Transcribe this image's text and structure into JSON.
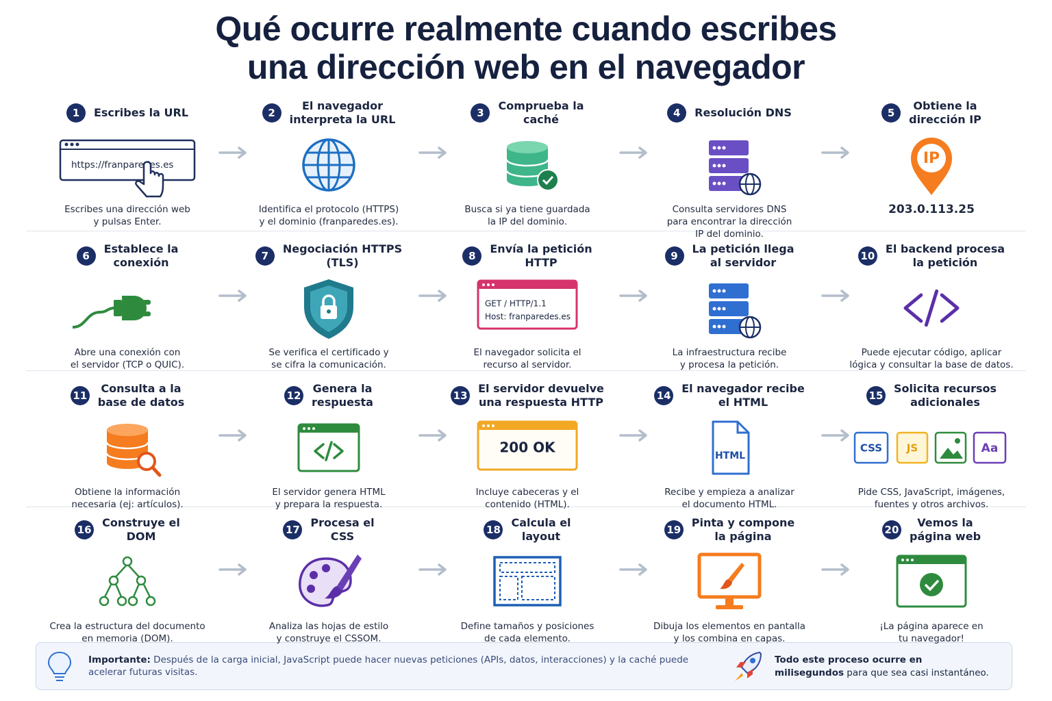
{
  "title": [
    "Qué ocurre realmente cuando escribes",
    "una dirección web en el navegador"
  ],
  "steps": [
    {
      "number": 1,
      "title": [
        "Escribes la URL"
      ],
      "description": [
        "Escribes una dirección web",
        "y pulsas Enter."
      ],
      "icon_labels": [
        "https://franparedes.es"
      ]
    },
    {
      "number": 2,
      "title": [
        "El navegador",
        "interpreta la URL"
      ],
      "description": [
        "Identifica el protocolo (HTTPS)",
        "y el dominio (franparedes.es)."
      ]
    },
    {
      "number": 3,
      "title": [
        "Comprueba la",
        "caché"
      ],
      "description": [
        "Busca si ya tiene guardada",
        "la IP del dominio."
      ]
    },
    {
      "number": 4,
      "title": [
        "Resolución DNS"
      ],
      "description": [
        "Consulta servidores DNS",
        "para encontrar la dirección",
        "IP del dominio."
      ]
    },
    {
      "number": 5,
      "title": [
        "Obtiene la",
        "dirección IP"
      ],
      "description": [
        "203.0.113.25"
      ],
      "icon_labels": [
        "IP"
      ]
    },
    {
      "number": 6,
      "title": [
        "Establece la",
        "conexión"
      ],
      "description": [
        "Abre una conexión con",
        "el servidor (TCP o QUIC)."
      ]
    },
    {
      "number": 7,
      "title": [
        "Negociación HTTPS",
        "(TLS)"
      ],
      "description": [
        "Se verifica el certificado y",
        "se cifra la comunicación."
      ]
    },
    {
      "number": 8,
      "title": [
        "Envía la petición",
        "HTTP"
      ],
      "description": [
        "El navegador solicita el",
        "recurso al servidor."
      ],
      "icon_labels": [
        "GET / HTTP/1.1",
        "Host: franparedes.es"
      ]
    },
    {
      "number": 9,
      "title": [
        "La petición llega",
        "al servidor"
      ],
      "description": [
        "La infraestructura recibe",
        "y procesa la petición."
      ]
    },
    {
      "number": 10,
      "title": [
        "El backend procesa",
        "la petición"
      ],
      "description": [
        "Puede ejecutar código, aplicar",
        "lógica y consultar la base de datos."
      ]
    },
    {
      "number": 11,
      "title": [
        "Consulta a la",
        "base de datos"
      ],
      "description": [
        "Obtiene la información",
        "necesaria (ej: artículos)."
      ]
    },
    {
      "number": 12,
      "title": [
        "Genera la",
        "respuesta"
      ],
      "description": [
        "El servidor genera HTML",
        "y prepara la respuesta."
      ]
    },
    {
      "number": 13,
      "title": [
        "El servidor devuelve",
        "una respuesta HTTP"
      ],
      "description": [
        "Incluye cabeceras y el",
        "contenido (HTML)."
      ],
      "icon_labels": [
        "200 OK"
      ]
    },
    {
      "number": 14,
      "title": [
        "El navegador recibe",
        "el HTML"
      ],
      "description": [
        "Recibe y empieza a analizar",
        "el documento HTML."
      ],
      "icon_labels": [
        "HTML"
      ]
    },
    {
      "number": 15,
      "title": [
        "Solicita recursos",
        "adicionales"
      ],
      "description": [
        "Pide CSS, JavaScript, imágenes,",
        "fuentes y otros archivos."
      ],
      "icon_labels": [
        "CSS",
        "JS",
        "Aa"
      ]
    },
    {
      "number": 16,
      "title": [
        "Construye el",
        "DOM"
      ],
      "description": [
        "Crea la estructura del documento",
        "en memoria (DOM)."
      ]
    },
    {
      "number": 17,
      "title": [
        "Procesa el",
        "CSS"
      ],
      "description": [
        "Analiza las hojas de estilo",
        "y construye el CSSOM."
      ]
    },
    {
      "number": 18,
      "title": [
        "Calcula el",
        "layout"
      ],
      "description": [
        "Define tamaños y posiciones",
        "de cada elemento."
      ]
    },
    {
      "number": 19,
      "title": [
        "Pinta y compone",
        "la página"
      ],
      "description": [
        "Dibuja los elementos en pantalla",
        "y los combina en capas."
      ]
    },
    {
      "number": 20,
      "title": [
        "Vemos la",
        "página web"
      ],
      "description": [
        "¡La página aparece en",
        "tu navegador!"
      ]
    }
  ],
  "footer": {
    "important_label": "Importante:",
    "important_text": [
      "Después de la carga inicial, JavaScript puede hacer nuevas peticiones (APIs, datos, interacciones) y la caché puede",
      "acelerar futuras visitas."
    ],
    "speed_line": "Todo este proceso ocurre en",
    "speed_bold": "milisegundos",
    "speed_rest": "para que sea casi instantáneo."
  }
}
